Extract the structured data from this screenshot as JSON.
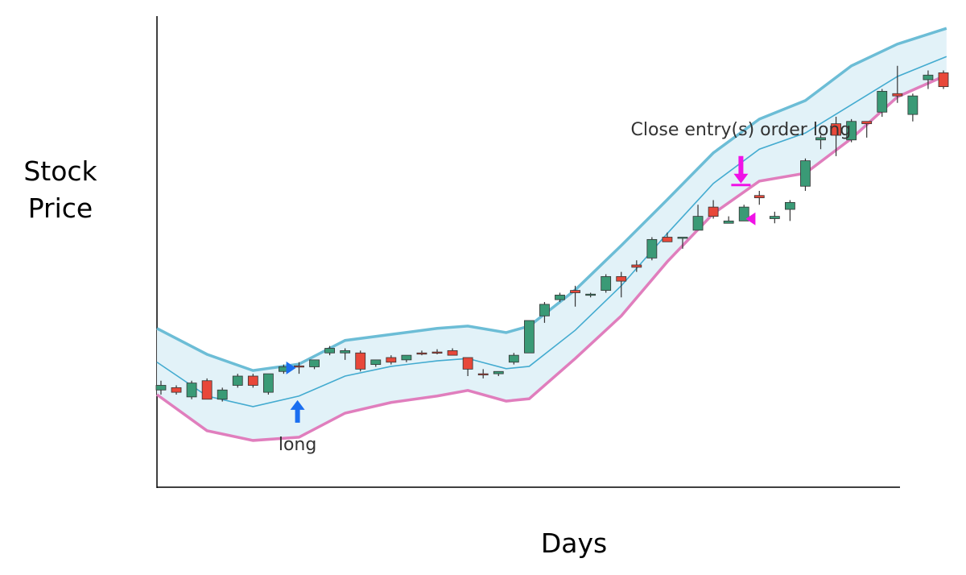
{
  "chart_data": {
    "type": "candlestick",
    "y_label": "Stock Price",
    "x_label": "Days",
    "xlim": [
      0.74,
      52.42
    ],
    "ylim": [
      0,
      100
    ],
    "x": [
      1,
      2,
      3,
      4,
      5,
      6,
      7,
      8,
      9,
      10,
      11,
      12,
      13,
      14,
      15,
      16,
      17,
      18,
      19,
      20,
      21,
      22,
      23,
      24,
      25,
      26,
      27,
      28,
      29,
      30,
      31,
      32,
      33,
      34,
      35,
      36,
      37,
      38,
      39,
      40,
      41,
      42,
      43,
      44,
      45,
      46,
      47,
      48,
      49,
      50,
      51,
      52
    ],
    "open": [
      21,
      21.5,
      19.5,
      23,
      19,
      22,
      24,
      20.5,
      25,
      26.2,
      26,
      29,
      29,
      29,
      26.5,
      28,
      27.5,
      29,
      29.2,
      29.5,
      28,
      24.5,
      24.5,
      27,
      29,
      37,
      40.5,
      42.5,
      41.5,
      42.5,
      45.5,
      48,
      49.5,
      54,
      54,
      55.5,
      60.5,
      57,
      57.5,
      63,
      58,
      60,
      65,
      75,
      78.5,
      75,
      79,
      81,
      85,
      80.5,
      88,
      89.5
    ],
    "high": [
      23,
      22,
      23,
      23.5,
      21.5,
      24.5,
      24.5,
      24.5,
      26.5,
      27,
      27.5,
      30.5,
      30,
      29.5,
      27.5,
      28.5,
      28.5,
      29.5,
      29.8,
      30,
      28,
      25.5,
      25,
      29,
      36,
      40,
      42,
      43.5,
      42,
      46,
      46.5,
      49,
      54,
      55,
      54,
      61,
      62,
      58.5,
      61,
      64,
      59.5,
      62,
      71,
      76,
      80,
      79.5,
      79,
      86,
      91,
      85,
      90,
      90
    ],
    "low": [
      20,
      20,
      19,
      19,
      18.5,
      21.5,
      21.5,
      20,
      24.5,
      24.5,
      25.5,
      28.5,
      27.5,
      25,
      26,
      26.5,
      27,
      28.5,
      28.7,
      28.5,
      24,
      23.5,
      24,
      26.5,
      29,
      35.5,
      40,
      39,
      41,
      42,
      41,
      46.5,
      49,
      53,
      51.5,
      55.5,
      58,
      57,
      57.5,
      61,
      57,
      57.5,
      64,
      73,
      71.5,
      74.5,
      75.5,
      80,
      83,
      79,
      86,
      86
    ],
    "close": [
      22,
      20.5,
      22.5,
      19,
      21,
      24,
      22,
      24.5,
      26,
      26,
      27.5,
      30,
      29.5,
      25.5,
      27.5,
      27,
      28.5,
      28.8,
      29,
      28.5,
      25.5,
      24.3,
      25,
      28.5,
      36,
      39.5,
      41.5,
      42,
      41.7,
      45.5,
      44.5,
      47.5,
      53.5,
      53,
      54,
      58.5,
      58.5,
      57.5,
      60.5,
      62.5,
      58.5,
      61.5,
      70.5,
      75.5,
      76,
      79,
      78.5,
      85.5,
      84.5,
      84.5,
      89,
      86.5
    ],
    "up_color": "#3a9a76",
    "down_color": "#e8483a",
    "band_x": [
      0.74,
      4,
      7,
      10,
      13,
      16,
      19,
      21,
      23.5,
      25,
      28,
      31,
      34,
      37,
      40,
      43,
      46,
      49,
      52.2
    ],
    "bands": [
      {
        "color": "#6cbdd6",
        "values": [
          34.3,
          28.7,
          25.2,
          26.6,
          31.7,
          33.0,
          34.3,
          34.8,
          33.4,
          34.8,
          42.6,
          52.2,
          62.1,
          72.2,
          79.5,
          83.5,
          91.0,
          95.7,
          99.1
        ]
      },
      {
        "color": "#43abd0",
        "values": [
          27.0,
          19.7,
          17.4,
          19.7,
          24.0,
          26.1,
          27.3,
          27.8,
          25.6,
          26.1,
          33.9,
          43.5,
          54.8,
          65.6,
          73.0,
          76.5,
          82.6,
          88.7,
          93.0
        ]
      },
      {
        "color": "#e07ebd",
        "values": [
          20.0,
          12.2,
          10.1,
          10.8,
          16.0,
          18.3,
          19.7,
          20.9,
          18.6,
          19.1,
          27.8,
          37.0,
          48.7,
          59.1,
          66.1,
          67.8,
          75.3,
          84.3,
          89.0
        ]
      }
    ],
    "band_fill": "#e2f2f8",
    "signals": [
      {
        "label": "long",
        "x": 9.9,
        "y": 18.8,
        "direction": "up",
        "color": "#1a6ef0"
      },
      {
        "label": "Close entry(s) order long",
        "x": 38.8,
        "y": 65.6,
        "direction": "down",
        "color": "#f012e6"
      }
    ]
  }
}
